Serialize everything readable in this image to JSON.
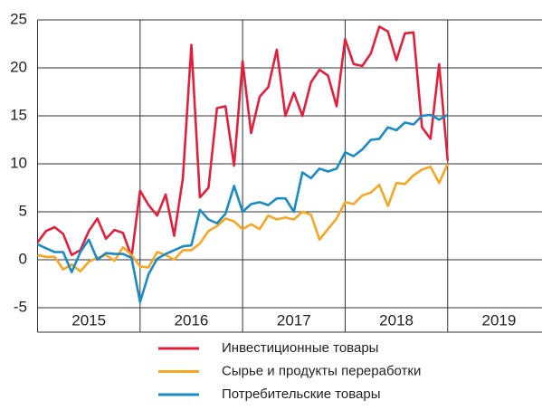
{
  "chart_data": {
    "type": "line",
    "categories": [
      "2015",
      "2016",
      "2017",
      "2018",
      "2019"
    ],
    "x": [
      2015,
      2015.083,
      2015.167,
      2015.25,
      2015.333,
      2015.417,
      2015.5,
      2015.583,
      2015.667,
      2015.75,
      2015.833,
      2015.917,
      2016,
      2016.083,
      2016.167,
      2016.25,
      2016.333,
      2016.417,
      2016.5,
      2016.583,
      2016.667,
      2016.75,
      2016.833,
      2016.917,
      2017,
      2017.083,
      2017.167,
      2017.25,
      2017.333,
      2017.417,
      2017.5,
      2017.583,
      2017.667,
      2017.75,
      2017.833,
      2017.917,
      2018,
      2018.083,
      2018.167,
      2018.25,
      2018.333,
      2018.417,
      2018.5,
      2018.583,
      2018.667,
      2018.75,
      2018.833,
      2018.917,
      2019
    ],
    "series": [
      {
        "name": "Инвестиционные товары",
        "color": "#e2203c",
        "values": [
          1.8,
          3.0,
          3.4,
          2.7,
          0.5,
          1.0,
          3.0,
          4.3,
          2.2,
          3.1,
          2.8,
          0.3,
          7.2,
          5.7,
          4.6,
          6.8,
          2.5,
          8.5,
          22.4,
          6.5,
          7.5,
          15.8,
          16.0,
          9.8,
          20.7,
          13.2,
          17.0,
          18.0,
          21.9,
          15.0,
          17.4,
          15.0,
          18.5,
          19.8,
          19.2,
          16.0,
          23.0,
          20.4,
          20.2,
          21.5,
          24.3,
          23.8,
          20.8,
          23.6,
          23.7,
          13.8,
          12.6,
          20.4,
          10.3
        ]
      },
      {
        "name": "Сырье и продукты переработки",
        "color": "#f5a623",
        "values": [
          0.5,
          0.3,
          0.3,
          -1.0,
          -0.5,
          -1.2,
          -0.2,
          0.2,
          0.5,
          -0.1,
          1.3,
          0.5,
          -0.7,
          -0.8,
          0.8,
          0.5,
          0.0,
          1.0,
          1.0,
          1.7,
          3.0,
          3.5,
          4.3,
          4.0,
          3.2,
          3.7,
          3.2,
          4.6,
          4.2,
          4.4,
          4.2,
          5.0,
          4.7,
          2.1,
          3.2,
          4.3,
          6.0,
          5.8,
          6.7,
          7.0,
          7.8,
          5.6,
          8.0,
          7.9,
          8.8,
          9.4,
          9.7,
          8.0,
          10.0
        ]
      },
      {
        "name": "Потребительские товары",
        "color": "#1a8bc4",
        "values": [
          1.6,
          1.2,
          0.8,
          0.8,
          -1.3,
          0.8,
          2.1,
          0.0,
          0.7,
          0.6,
          0.6,
          0.2,
          -4.4,
          -1.5,
          0.1,
          0.6,
          1.0,
          1.4,
          1.5,
          5.2,
          4.2,
          3.8,
          4.8,
          7.7,
          5.0,
          5.8,
          6.0,
          5.7,
          6.4,
          6.4,
          5.0,
          9.1,
          8.5,
          9.5,
          9.2,
          9.5,
          11.2,
          10.8,
          11.5,
          12.5,
          12.6,
          13.8,
          13.5,
          14.3,
          14.1,
          15.0,
          15.1,
          14.6,
          15.1
        ]
      }
    ],
    "xlim": [
      2015,
      2019.92
    ],
    "xticks": [
      2016,
      2017,
      2018,
      2019
    ],
    "ylim": [
      -5,
      25
    ],
    "yticks": [
      -5,
      0,
      5,
      10,
      15,
      20,
      25
    ],
    "grid": true
  }
}
